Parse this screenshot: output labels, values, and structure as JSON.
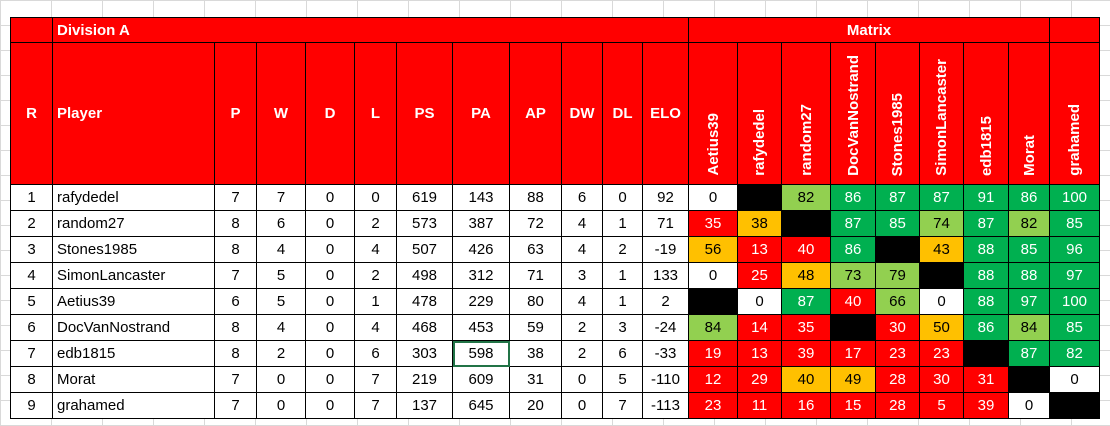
{
  "title": "Division A",
  "matrix_title": "Matrix",
  "columns": [
    "R",
    "Player",
    "P",
    "W",
    "D",
    "L",
    "PS",
    "PA",
    "AP",
    "DW",
    "DL",
    "ELO"
  ],
  "matrix_columns": [
    "Aetius39",
    "rafydedel",
    "random27",
    "DocVanNostrand",
    "Stones1985",
    "SimonLancaster",
    "edb1815",
    "Morat",
    "grahamed"
  ],
  "rows": [
    {
      "r": "1",
      "player": "rafydedel",
      "p": "7",
      "w": "7",
      "d": "0",
      "l": "0",
      "ps": "619",
      "pa": "143",
      "ap": "88",
      "dw": "6",
      "dl": "0",
      "elo": "92",
      "matrix": [
        [
          "0",
          "white"
        ],
        [
          "",
          "black"
        ],
        [
          "82",
          "lgreen"
        ],
        [
          "86",
          "green"
        ],
        [
          "87",
          "green"
        ],
        [
          "87",
          "green"
        ],
        [
          "91",
          "green"
        ],
        [
          "86",
          "green"
        ],
        [
          "100",
          "green"
        ]
      ]
    },
    {
      "r": "2",
      "player": "random27",
      "p": "8",
      "w": "6",
      "d": "0",
      "l": "2",
      "ps": "573",
      "pa": "387",
      "ap": "72",
      "dw": "4",
      "dl": "1",
      "elo": "71",
      "matrix": [
        [
          "35",
          "red"
        ],
        [
          "38",
          "orange"
        ],
        [
          "",
          "black"
        ],
        [
          "87",
          "green"
        ],
        [
          "85",
          "green"
        ],
        [
          "74",
          "lgreen"
        ],
        [
          "87",
          "green"
        ],
        [
          "82",
          "lgreen"
        ],
        [
          "85",
          "green"
        ]
      ]
    },
    {
      "r": "3",
      "player": "Stones1985",
      "p": "8",
      "w": "4",
      "d": "0",
      "l": "4",
      "ps": "507",
      "pa": "426",
      "ap": "63",
      "dw": "4",
      "dl": "2",
      "elo": "-19",
      "matrix": [
        [
          "56",
          "orange"
        ],
        [
          "13",
          "red"
        ],
        [
          "40",
          "red"
        ],
        [
          "86",
          "green"
        ],
        [
          "",
          "black"
        ],
        [
          "43",
          "orange"
        ],
        [
          "88",
          "green"
        ],
        [
          "85",
          "green"
        ],
        [
          "96",
          "green"
        ]
      ]
    },
    {
      "r": "4",
      "player": "SimonLancaster",
      "p": "7",
      "w": "5",
      "d": "0",
      "l": "2",
      "ps": "498",
      "pa": "312",
      "ap": "71",
      "dw": "3",
      "dl": "1",
      "elo": "133",
      "matrix": [
        [
          "0",
          "white"
        ],
        [
          "25",
          "red"
        ],
        [
          "48",
          "orange"
        ],
        [
          "73",
          "lgreen"
        ],
        [
          "79",
          "lgreen"
        ],
        [
          "",
          "black"
        ],
        [
          "88",
          "green"
        ],
        [
          "88",
          "green"
        ],
        [
          "97",
          "green"
        ]
      ]
    },
    {
      "r": "5",
      "player": "Aetius39",
      "p": "6",
      "w": "5",
      "d": "0",
      "l": "1",
      "ps": "478",
      "pa": "229",
      "ap": "80",
      "dw": "4",
      "dl": "1",
      "elo": "2",
      "matrix": [
        [
          "",
          "black"
        ],
        [
          "0",
          "white"
        ],
        [
          "87",
          "green"
        ],
        [
          "40",
          "red"
        ],
        [
          "66",
          "lgreen"
        ],
        [
          "0",
          "white"
        ],
        [
          "88",
          "green"
        ],
        [
          "97",
          "green"
        ],
        [
          "100",
          "green"
        ]
      ]
    },
    {
      "r": "6",
      "player": "DocVanNostrand",
      "p": "8",
      "w": "4",
      "d": "0",
      "l": "4",
      "ps": "468",
      "pa": "453",
      "ap": "59",
      "dw": "2",
      "dl": "3",
      "elo": "-24",
      "matrix": [
        [
          "84",
          "lgreen"
        ],
        [
          "14",
          "red"
        ],
        [
          "35",
          "red"
        ],
        [
          "",
          "black"
        ],
        [
          "30",
          "red"
        ],
        [
          "50",
          "orange"
        ],
        [
          "86",
          "green"
        ],
        [
          "84",
          "lgreen"
        ],
        [
          "85",
          "green"
        ]
      ]
    },
    {
      "r": "7",
      "player": "edb1815",
      "p": "8",
      "w": "2",
      "d": "0",
      "l": "6",
      "ps": "303",
      "pa": "598",
      "ap": "38",
      "dw": "2",
      "dl": "6",
      "elo": "-33",
      "matrix": [
        [
          "19",
          "red"
        ],
        [
          "13",
          "red"
        ],
        [
          "39",
          "red"
        ],
        [
          "17",
          "red"
        ],
        [
          "23",
          "red"
        ],
        [
          "23",
          "red"
        ],
        [
          "",
          "black"
        ],
        [
          "87",
          "green"
        ],
        [
          "82",
          "green"
        ]
      ]
    },
    {
      "r": "8",
      "player": "Morat",
      "p": "7",
      "w": "0",
      "d": "0",
      "l": "7",
      "ps": "219",
      "pa": "609",
      "ap": "31",
      "dw": "0",
      "dl": "5",
      "elo": "-110",
      "matrix": [
        [
          "12",
          "red"
        ],
        [
          "29",
          "red"
        ],
        [
          "40",
          "orange"
        ],
        [
          "49",
          "orange"
        ],
        [
          "28",
          "red"
        ],
        [
          "30",
          "red"
        ],
        [
          "31",
          "red"
        ],
        [
          "",
          "black"
        ],
        [
          "0",
          "white"
        ]
      ]
    },
    {
      "r": "9",
      "player": "grahamed",
      "p": "7",
      "w": "0",
      "d": "0",
      "l": "7",
      "ps": "137",
      "pa": "645",
      "ap": "20",
      "dw": "0",
      "dl": "7",
      "elo": "-113",
      "matrix": [
        [
          "23",
          "red"
        ],
        [
          "11",
          "red"
        ],
        [
          "16",
          "red"
        ],
        [
          "15",
          "red"
        ],
        [
          "28",
          "red"
        ],
        [
          "5",
          "red"
        ],
        [
          "39",
          "red"
        ],
        [
          "0",
          "white"
        ],
        [
          "",
          "black"
        ]
      ]
    }
  ],
  "colors": {
    "header_red": "#ff0000",
    "red": "#ff0000",
    "orange": "#ffc000",
    "light_green": "#92d050",
    "green": "#00b050",
    "selection": "#217346"
  }
}
